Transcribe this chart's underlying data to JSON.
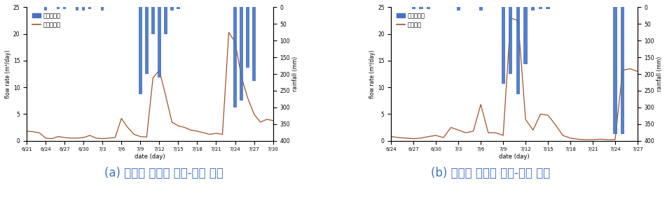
{
  "chart1": {
    "xlabel": "date (day)",
    "ylabel_left": "flow rate (m³/day)",
    "ylabel_right": "rainfall (mm)",
    "xlim_start": 0,
    "xlim_end": 39,
    "ylim_left": [
      0,
      25
    ],
    "ylim_right": [
      400,
      0
    ],
    "yticks_left": [
      0,
      5,
      10,
      15,
      20,
      25
    ],
    "yticks_right": [
      0,
      50,
      100,
      150,
      200,
      250,
      300,
      350,
      400
    ],
    "xtick_labels": [
      "6/21",
      "6/24",
      "6/27",
      "6/30",
      "7/3",
      "7/6",
      "7/9",
      "7/12",
      "7/15",
      "7/18",
      "7/21",
      "7/24",
      "7/27",
      "7/30"
    ],
    "xtick_positions": [
      0,
      3,
      6,
      9,
      12,
      15,
      18,
      21,
      24,
      27,
      30,
      33,
      36,
      39
    ],
    "flow_x": [
      0,
      1,
      2,
      3,
      4,
      5,
      6,
      7,
      8,
      9,
      10,
      11,
      12,
      13,
      14,
      15,
      16,
      17,
      18,
      19,
      20,
      21,
      22,
      23,
      24,
      25,
      26,
      27,
      28,
      29,
      30,
      31,
      32,
      33,
      34,
      35,
      36,
      37,
      38,
      39
    ],
    "flow_y": [
      1.8,
      1.7,
      1.5,
      0.5,
      0.4,
      0.8,
      0.6,
      0.5,
      0.5,
      0.6,
      1.0,
      0.5,
      0.4,
      0.5,
      0.6,
      4.2,
      2.5,
      1.2,
      0.8,
      0.7,
      11.8,
      13.2,
      8.5,
      3.5,
      2.8,
      2.5,
      2.0,
      1.8,
      1.5,
      1.2,
      1.4,
      1.2,
      20.3,
      18.5,
      12.0,
      8.0,
      5.0,
      3.5,
      4.0,
      3.8
    ],
    "rain_bars_x": [
      3,
      5,
      6,
      8,
      9,
      10,
      12,
      18,
      19,
      20,
      21,
      22,
      23,
      24,
      33,
      34,
      35,
      36
    ],
    "rain_bars_height": [
      10,
      5,
      5,
      10,
      10,
      5,
      10,
      260,
      200,
      80,
      210,
      80,
      10,
      5,
      300,
      280,
      180,
      220
    ],
    "flow_color": "#a0522d",
    "bar_color": "#4472c4",
    "legend1": "수원강수량",
    "legend2": "신길천유량"
  },
  "chart2": {
    "xlabel": "date (day)",
    "ylabel_left": "flow rate (m³/day)",
    "ylabel_right": "rainfall (mm)",
    "xlim_start": 0,
    "xlim_end": 33,
    "ylim_left": [
      0,
      25
    ],
    "ylim_right": [
      400,
      0
    ],
    "yticks_left": [
      0,
      5,
      10,
      15,
      20,
      25
    ],
    "yticks_right": [
      0,
      50,
      100,
      150,
      200,
      250,
      300,
      350,
      400
    ],
    "xtick_labels": [
      "6/24",
      "6/27",
      "6/30",
      "7/3",
      "7/6",
      "7/9",
      "7/12",
      "7/15",
      "7/18",
      "7/21",
      "7/24",
      "7/27"
    ],
    "xtick_positions": [
      0,
      3,
      6,
      9,
      12,
      15,
      18,
      21,
      24,
      27,
      30,
      33
    ],
    "flow_x": [
      0,
      1,
      2,
      3,
      4,
      5,
      6,
      7,
      8,
      9,
      10,
      11,
      12,
      13,
      14,
      15,
      16,
      17,
      18,
      19,
      20,
      21,
      22,
      23,
      24,
      25,
      26,
      27,
      28,
      29,
      30,
      31,
      32,
      33
    ],
    "flow_y": [
      0.8,
      0.6,
      0.5,
      0.4,
      0.5,
      0.8,
      1.0,
      0.6,
      2.5,
      2.0,
      1.5,
      1.8,
      6.8,
      1.5,
      1.5,
      1.0,
      23.0,
      22.5,
      4.0,
      2.0,
      5.0,
      4.8,
      3.0,
      1.0,
      0.5,
      0.3,
      0.2,
      0.2,
      0.3,
      0.2,
      0.2,
      13.2,
      13.5,
      13.0
    ],
    "rain_bars_x": [
      3,
      4,
      5,
      9,
      12,
      15,
      16,
      17,
      18,
      19,
      20,
      21,
      30,
      31
    ],
    "rain_bars_height": [
      5,
      5,
      5,
      10,
      10,
      230,
      200,
      260,
      170,
      10,
      5,
      5,
      380,
      380
    ],
    "flow_color": "#a0522d",
    "bar_color": "#4472c4",
    "legend1": "수원강수량",
    "legend2": "여도유량"
  },
  "background_color": "#ffffff",
  "caption_color": "#4472c4",
  "caption_black": "#222222",
  "caption_fontsize": 12
}
